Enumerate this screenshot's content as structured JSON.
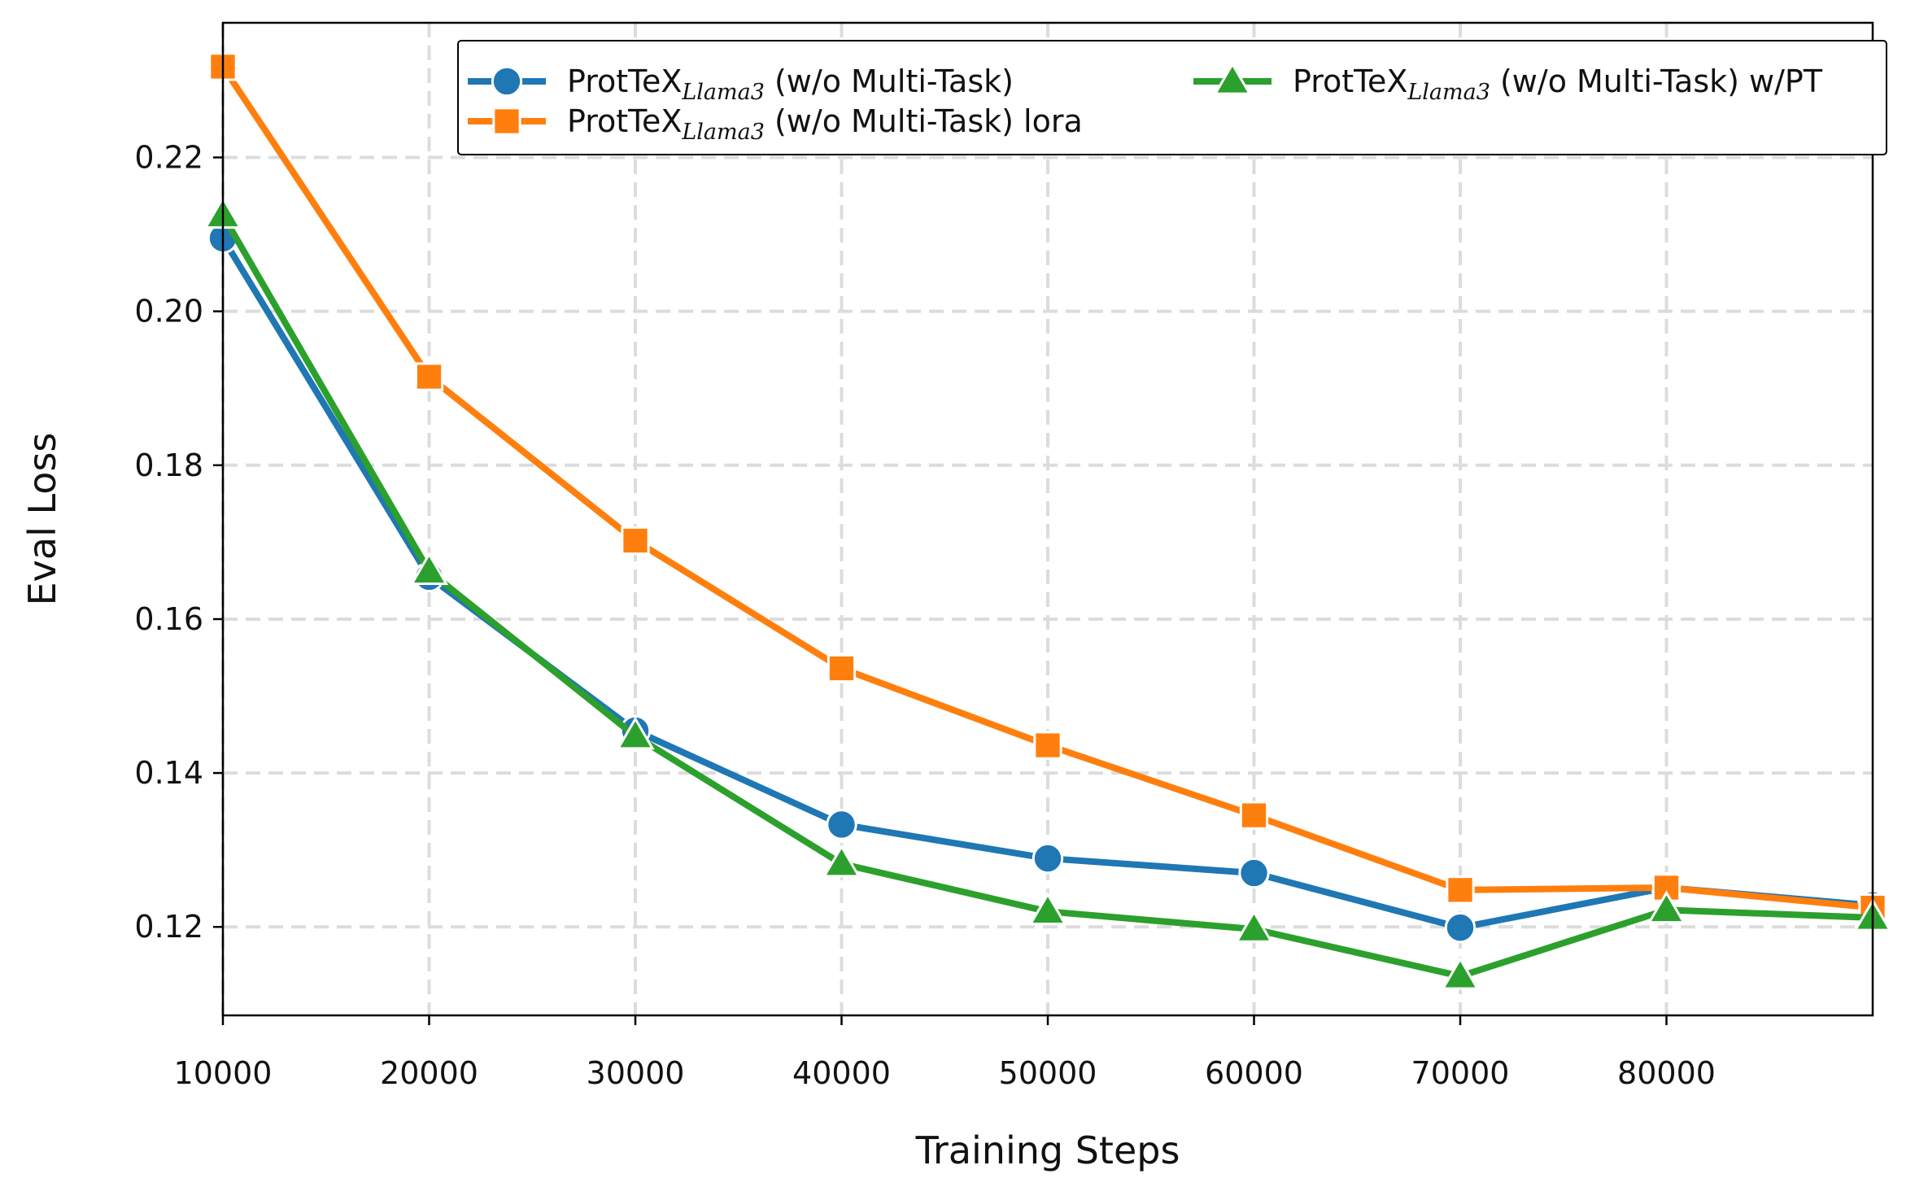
{
  "chart_data": {
    "type": "line",
    "title": "",
    "xlabel": "Training Steps",
    "ylabel": "Eval Loss",
    "xlim": [
      10000,
      90000
    ],
    "ylim": [
      0.1085,
      0.2375
    ],
    "xticks": [
      10000,
      20000,
      30000,
      40000,
      50000,
      60000,
      70000,
      80000
    ],
    "xtick_labels": [
      "10000",
      "20000",
      "30000",
      "40000",
      "50000",
      "60000",
      "70000",
      "80000"
    ],
    "yticks": [
      0.12,
      0.14,
      0.16,
      0.18,
      0.2,
      0.22
    ],
    "ytick_labels": [
      "0.12",
      "0.14",
      "0.16",
      "0.18",
      "0.20",
      "0.22"
    ],
    "grid": true,
    "legend_position": "top-right",
    "x": [
      10000,
      20000,
      30000,
      40000,
      50000,
      60000,
      70000,
      80000,
      90000
    ],
    "series": [
      {
        "name_main": "ProtTeX",
        "name_sub": "Llama3",
        "name_suffix": " (w/o Multi-Task)",
        "color": "#1f77b4",
        "marker": "circle",
        "values": [
          0.2095,
          0.1655,
          0.1455,
          0.1333,
          0.1289,
          0.127,
          0.1199,
          0.1251,
          0.1228
        ]
      },
      {
        "name_main": "ProtTeX",
        "name_sub": "Llama3",
        "name_suffix": " (w/o Multi-Task) lora",
        "color": "#ff7f0e",
        "marker": "square",
        "values": [
          0.2318,
          0.1915,
          0.1702,
          0.1536,
          0.1436,
          0.1345,
          0.1248,
          0.1251,
          0.1225
        ]
      },
      {
        "name_main": "ProtTeX",
        "name_sub": "Llama3",
        "name_suffix": " (w/o Multi-Task) w/PT",
        "color": "#2ca02c",
        "marker": "triangle",
        "values": [
          0.2125,
          0.1662,
          0.1448,
          0.1282,
          0.122,
          0.1197,
          0.1136,
          0.1222,
          0.1212
        ]
      }
    ]
  }
}
